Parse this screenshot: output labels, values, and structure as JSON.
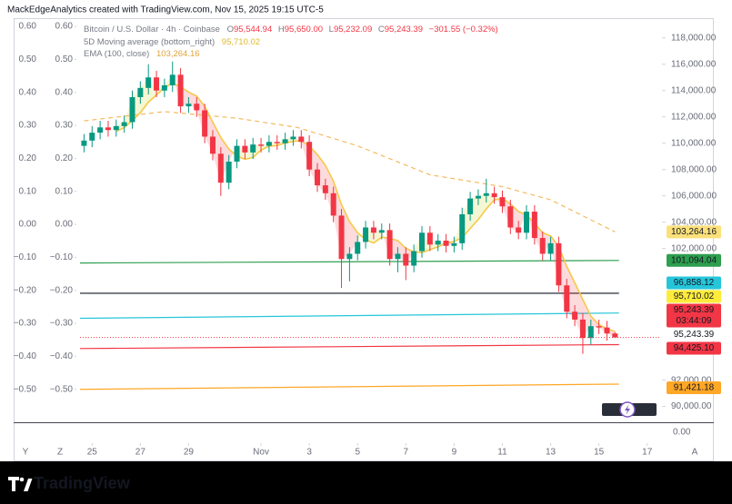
{
  "header": {
    "watermark": "MackEdgeAnalytics created with TradingView.com, Nov 15, 2025 19:15 UTC-5"
  },
  "chart_data": {
    "type": "candlestick",
    "symbol": "Bitcoin / U.S. Dollar · 4h · Coinbase",
    "ohlc": [
      {
        "key": "O",
        "text": "95,544.94"
      },
      {
        "key": "H",
        "text": "95,650.00"
      },
      {
        "key": "L",
        "text": "95,232.09"
      },
      {
        "key": "C",
        "text": "95,243.39"
      }
    ],
    "change": "−301.55 (−0.32%)",
    "x": [
      "2025-10-24 16:00",
      "2025-10-25 00:00",
      "2025-10-25 08:00",
      "2025-10-25 16:00",
      "2025-10-26 00:00",
      "2025-10-26 08:00",
      "2025-10-26 16:00",
      "2025-10-27 00:00",
      "2025-10-27 08:00",
      "2025-10-27 16:00",
      "2025-10-28 00:00",
      "2025-10-28 08:00",
      "2025-10-28 16:00",
      "2025-10-29 00:00",
      "2025-10-29 08:00",
      "2025-10-29 16:00",
      "2025-10-30 00:00",
      "2025-10-30 08:00",
      "2025-10-30 16:00",
      "2025-10-31 00:00",
      "2025-10-31 08:00",
      "2025-10-31 16:00",
      "2025-11-01 00:00",
      "2025-11-01 08:00",
      "2025-11-01 16:00",
      "2025-11-02 00:00",
      "2025-11-02 08:00",
      "2025-11-02 16:00",
      "2025-11-03 00:00",
      "2025-11-03 08:00",
      "2025-11-03 16:00",
      "2025-11-04 00:00",
      "2025-11-04 08:00",
      "2025-11-04 16:00",
      "2025-11-05 00:00",
      "2025-11-05 08:00",
      "2025-11-05 16:00",
      "2025-11-06 00:00",
      "2025-11-06 08:00",
      "2025-11-06 16:00",
      "2025-11-07 00:00",
      "2025-11-07 08:00",
      "2025-11-07 16:00",
      "2025-11-08 00:00",
      "2025-11-08 08:00",
      "2025-11-08 16:00",
      "2025-11-09 00:00",
      "2025-11-09 08:00",
      "2025-11-09 16:00",
      "2025-11-10 00:00",
      "2025-11-10 08:00",
      "2025-11-10 16:00",
      "2025-11-11 00:00",
      "2025-11-11 08:00",
      "2025-11-11 16:00",
      "2025-11-12 00:00",
      "2025-11-12 08:00",
      "2025-11-12 16:00",
      "2025-11-13 00:00",
      "2025-11-13 08:00",
      "2025-11-13 16:00",
      "2025-11-14 00:00",
      "2025-11-14 08:00",
      "2025-11-14 16:00",
      "2025-11-15 00:00",
      "2025-11-15 08:00",
      "2025-11-15 16:00"
    ],
    "open": [
      109800,
      110200,
      110800,
      111200,
      111000,
      111300,
      111600,
      113500,
      114200,
      115000,
      114000,
      114400,
      115200,
      112800,
      113000,
      112500,
      110500,
      109200,
      107000,
      108600,
      109800,
      109300,
      109900,
      109800,
      110100,
      110000,
      110300,
      110500,
      110100,
      108000,
      106800,
      106200,
      104500,
      101200,
      101600,
      102500,
      103600,
      103200,
      103400,
      101200,
      101600,
      100700,
      101800,
      103200,
      102300,
      102600,
      102200,
      102400,
      104600,
      105800,
      106000,
      106200,
      105900,
      105200,
      103600,
      103200,
      104800,
      102800,
      101600,
      102400,
      99200,
      97200,
      96600,
      95200,
      96100,
      96000,
      95544.94
    ],
    "high": [
      110700,
      111300,
      111700,
      111700,
      111800,
      112100,
      114000,
      114700,
      116000,
      115500,
      114900,
      116200,
      115700,
      113500,
      113500,
      113000,
      111000,
      109700,
      109100,
      110300,
      110300,
      110400,
      110400,
      110600,
      110600,
      110800,
      111000,
      111000,
      110600,
      108500,
      107300,
      106700,
      105000,
      102100,
      103000,
      104100,
      104100,
      103900,
      103900,
      102100,
      102100,
      102300,
      103700,
      103700,
      103100,
      103100,
      102900,
      105100,
      106300,
      106500,
      107300,
      106700,
      106400,
      105700,
      104100,
      105300,
      105300,
      103300,
      102900,
      102900,
      99700,
      97700,
      97100,
      96600,
      96600,
      96500,
      95650
    ],
    "low": [
      109300,
      109700,
      110300,
      110500,
      110500,
      110800,
      111100,
      113000,
      113700,
      113500,
      113500,
      113900,
      112300,
      112300,
      112000,
      110000,
      108700,
      106000,
      106500,
      108100,
      108800,
      108800,
      109300,
      109300,
      109500,
      109500,
      109800,
      109600,
      107500,
      106300,
      105700,
      104000,
      99000,
      99500,
      101100,
      102000,
      102700,
      102700,
      100700,
      100200,
      99600,
      100200,
      101300,
      101800,
      101800,
      101700,
      101700,
      101900,
      104100,
      105300,
      105500,
      105400,
      104700,
      103100,
      102700,
      102700,
      102300,
      101100,
      101100,
      98700,
      96700,
      96100,
      94000,
      94700,
      95500,
      95000,
      95232.09
    ],
    "close": [
      110200,
      110800,
      111200,
      111000,
      111300,
      111600,
      113500,
      114200,
      115000,
      114000,
      114400,
      115200,
      112800,
      113000,
      112500,
      110500,
      109200,
      107000,
      108600,
      109800,
      109300,
      109900,
      109800,
      110100,
      110000,
      110300,
      110500,
      110100,
      108000,
      106800,
      106200,
      104500,
      101200,
      101600,
      102500,
      103600,
      103200,
      103400,
      101200,
      101600,
      100700,
      101800,
      103200,
      102300,
      102600,
      102200,
      102400,
      104600,
      105800,
      106000,
      106200,
      105900,
      105200,
      103600,
      103200,
      104800,
      102800,
      101600,
      102400,
      99200,
      97200,
      96600,
      95200,
      96100,
      96000,
      95544.94,
      95243.39
    ],
    "up_color": "#089981",
    "down_color": "#f23645",
    "indicators": [
      {
        "name": "5D Moving average (bottom_right)",
        "value_label": "95,710.02",
        "color": "#f7c948",
        "fill_below": "rgba(242,54,69,0.18)",
        "fill_above": "rgba(205,220,57,0.22)",
        "values": [
          null,
          null,
          null,
          null,
          110900,
          111180,
          111720,
          112320,
          113120,
          113660,
          114220,
          114560,
          114280,
          113880,
          113580,
          112800,
          111600,
          110440,
          109560,
          109020,
          108780,
          108920,
          109480,
          109780,
          109820,
          110020,
          110140,
          110200,
          109780,
          109140,
          108320,
          107120,
          105340,
          104060,
          103200,
          102680,
          102420,
          102860,
          102780,
          102600,
          102020,
          101740,
          101700,
          101920,
          102120,
          102420,
          102540,
          102820,
          103520,
          104200,
          105000,
          105700,
          105820,
          105380,
          104820,
          104540,
          103920,
          103200,
          102960,
          102160,
          100640,
          99400,
          98120,
          96860,
          96220,
          95889,
          95710.02
        ]
      },
      {
        "name": "EMA (100, close)",
        "value_label": "103,264.16",
        "color": "#f5b95f",
        "dashed": true,
        "x": [
          "2025-10-24 16:00",
          "2025-10-28 00:00",
          "2025-10-31 00:00",
          "2025-11-02 12:00",
          "2025-11-05 00:00",
          "2025-11-08 00:00",
          "2025-11-11 00:00",
          "2025-11-13 00:00",
          "2025-11-15 16:00"
        ],
        "values": [
          111700,
          112400,
          111900,
          111200,
          109800,
          107600,
          106700,
          105700,
          103264.16
        ]
      }
    ],
    "lines": [
      {
        "color": "#2e9e4f",
        "x": [
          "2025-10-24 12:00",
          "2025-11-15 20:00"
        ],
        "values": [
          100900,
          101094.04
        ]
      },
      {
        "color": "#131722",
        "x": [
          "2025-10-24 12:00",
          "2025-11-15 20:00"
        ],
        "values": [
          98600,
          98600
        ]
      },
      {
        "color": "#26c6da",
        "x": [
          "2025-10-24 12:00",
          "2025-11-15 20:00"
        ],
        "values": [
          96700,
          97100
        ]
      },
      {
        "color": "#f23645",
        "x": [
          "2025-10-24 12:00",
          "2025-11-15 20:00"
        ],
        "values": [
          94400,
          94700
        ]
      },
      {
        "color": "#ffa726",
        "x": [
          "2025-10-24 12:00",
          "2025-11-15 20:00"
        ],
        "values": [
          91300,
          91700
        ]
      }
    ],
    "price_labels": [
      {
        "value": 103264.16,
        "label": "103,264.16",
        "bg": "#fbe07a",
        "fg": "#131722"
      },
      {
        "value": 101094.04,
        "label": "101,094.04",
        "bg": "#2e9e4f",
        "fg": "#ffffff"
      },
      {
        "value": 96858.12,
        "label": "96,858.12",
        "bg": "#26c6da",
        "fg": "#131722"
      },
      {
        "value": 95710.02,
        "label": "95,710.02",
        "bg": "#ffeb3b",
        "fg": "#131722"
      },
      {
        "value": 95243.39,
        "label": "95,243.39",
        "bg": "#f23645",
        "fg": "#ffffff",
        "sublabel": "03:44:09"
      },
      {
        "value": 95243.39,
        "label": "95,243.39",
        "bg": "#ffffff",
        "fg": "#131722"
      },
      {
        "value": 94425.1,
        "label": "94,425.10",
        "bg": "#f23645",
        "fg": "#ffffff"
      },
      {
        "value": 91421.18,
        "label": "91,421.18",
        "bg": "#ffa726",
        "fg": "#131722"
      }
    ],
    "xlim": [
      "2025-10-21 18:00",
      "2025-11-17 12:00"
    ],
    "xticks": [
      {
        "value": "2025-10-25 00:00",
        "label": "25"
      },
      {
        "value": "2025-10-27 00:00",
        "label": "27"
      },
      {
        "value": "2025-10-29 00:00",
        "label": "29"
      },
      {
        "value": "2025-11-01 00:00",
        "label": "Nov"
      },
      {
        "value": "2025-11-03 00:00",
        "label": "3"
      },
      {
        "value": "2025-11-05 00:00",
        "label": "5"
      },
      {
        "value": "2025-11-07 00:00",
        "label": "7"
      },
      {
        "value": "2025-11-09 00:00",
        "label": "9"
      },
      {
        "value": "2025-11-11 00:00",
        "label": "11"
      },
      {
        "value": "2025-11-13 00:00",
        "label": "13"
      },
      {
        "value": "2025-11-15 00:00",
        "label": "15"
      },
      {
        "value": "2025-11-17 00:00",
        "label": "17"
      }
    ],
    "ylim": [
      88800,
      119500
    ],
    "yticks": [
      {
        "value": 118000,
        "label": "118,000.00"
      },
      {
        "value": 116000,
        "label": "116,000.00"
      },
      {
        "value": 114000,
        "label": "114,000.00"
      },
      {
        "value": 112000,
        "label": "112,000.00"
      },
      {
        "value": 110000,
        "label": "110,000.00"
      },
      {
        "value": 108000,
        "label": "108,000.00"
      },
      {
        "value": 106000,
        "label": "106,000.00"
      },
      {
        "value": 104000,
        "label": "104,000.00"
      },
      {
        "value": 102000,
        "label": "102,000.00"
      },
      {
        "value": 92000,
        "label": "92,000.00"
      },
      {
        "value": 90000,
        "label": "90,000.00"
      }
    ],
    "y2lim": [
      -0.6,
      0.625
    ],
    "y2ticks": [
      {
        "value": 0.6,
        "label": "0.60"
      },
      {
        "value": 0.5,
        "label": "0.50"
      },
      {
        "value": 0.4,
        "label": "0.40"
      },
      {
        "value": 0.3,
        "label": "0.30"
      },
      {
        "value": 0.2,
        "label": "0.20"
      },
      {
        "value": 0.1,
        "label": "0.10"
      },
      {
        "value": 0,
        "label": "0.00"
      },
      {
        "value": -0.1,
        "label": "−0.10"
      },
      {
        "value": -0.2,
        "label": "−0.20"
      },
      {
        "value": -0.3,
        "label": "−0.30"
      },
      {
        "value": -0.4,
        "label": "−0.40"
      },
      {
        "value": -0.5,
        "label": "−0.50"
      }
    ],
    "volume_label": "0.00"
  },
  "ui": {
    "corner_left": "Y",
    "corner_mid": "Z",
    "corner_right": "A",
    "brand": "TradingView"
  }
}
